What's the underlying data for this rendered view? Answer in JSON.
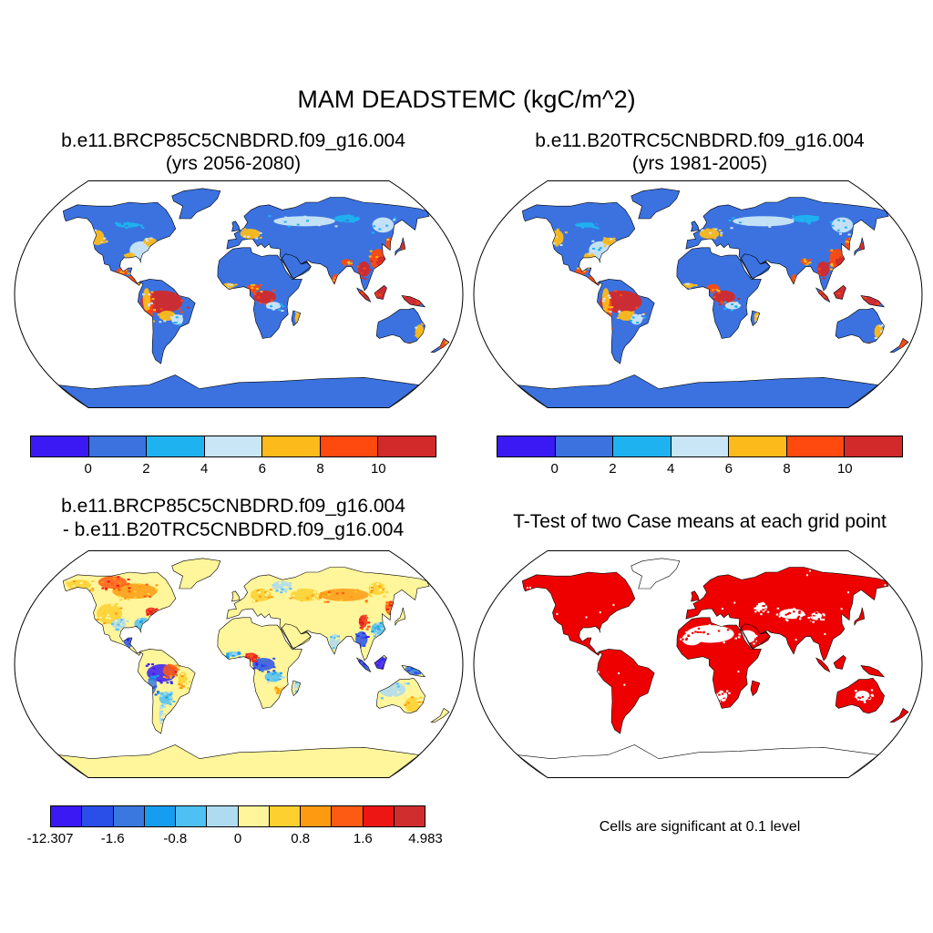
{
  "title": "MAM DEADSTEMC (kgC/m^2)",
  "panels": [
    {
      "title_line1": "b.e11.BRCP85C5CNBDRD.f09_g16.004",
      "title_line2": "(yrs 2056-2080)",
      "colorbar": {
        "colors": [
          "#3b19f5",
          "#3b72e0",
          "#1eb3f0",
          "#c9e6f7",
          "#fdbb1b",
          "#fe4a0e",
          "#d22a2a"
        ],
        "tick_labels": [
          "0",
          "2",
          "4",
          "6",
          "8",
          "10"
        ]
      }
    },
    {
      "title_line1": "b.e11.B20TRC5CNBDRD.f09_g16.004",
      "title_line2": "(yrs 1981-2005)",
      "colorbar": {
        "colors": [
          "#3b19f5",
          "#3b72e0",
          "#1eb3f0",
          "#c9e6f7",
          "#fdbb1b",
          "#fe4a0e",
          "#d22a2a"
        ],
        "tick_labels": [
          "0",
          "2",
          "4",
          "6",
          "8",
          "10"
        ]
      }
    },
    {
      "title_line1": "b.e11.BRCP85C5CNBDRD.f09_g16.004",
      "title_line2": "- b.e11.B20TRC5CNBDRD.f09_g16.004",
      "colorbar": {
        "colors": [
          "#3b19f5",
          "#2a4fe8",
          "#3a78e0",
          "#169df0",
          "#4ec0f2",
          "#aedbf0",
          "#fff59a",
          "#fdcf2f",
          "#fd9a12",
          "#fd5a14",
          "#ee1515",
          "#d02e2e"
        ],
        "tick_labels": [
          "-12.307",
          "-1.6",
          "-0.8",
          "0",
          "0.8",
          "1.6",
          "4.983"
        ]
      }
    },
    {
      "title_line1": "T-Test of two Case means at each grid point",
      "note": "Cells are significant at 0.1 level"
    }
  ],
  "colors": {
    "ocean": "#ffffff",
    "land_abs_base": "#3b72e0",
    "land_diff_base": "#fff59a",
    "significant": "#ee0000",
    "coastline": "#000000"
  }
}
